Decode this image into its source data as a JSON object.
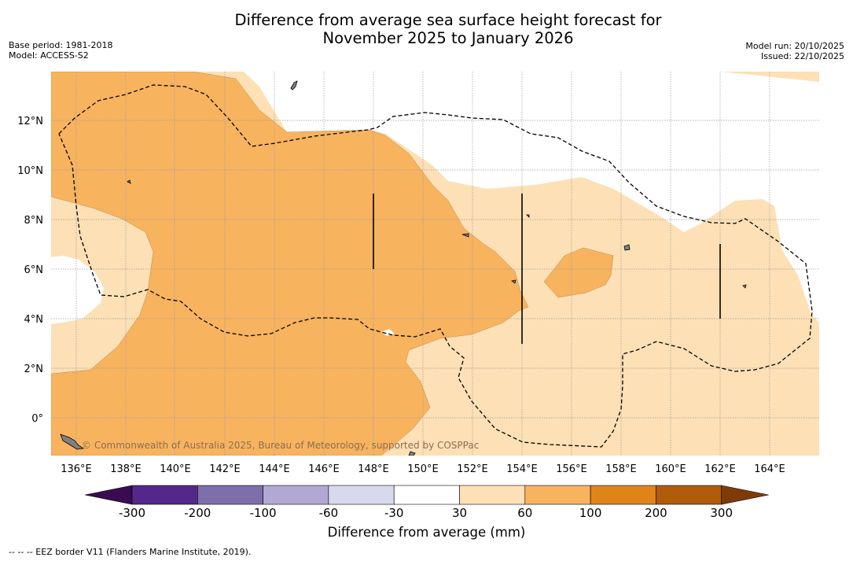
{
  "title": {
    "line1": "Difference from average sea surface height forecast for",
    "line2": "November 2025 to January 2026"
  },
  "meta_left": {
    "base_period": "Base period: 1981-2018",
    "model": "Model: ACCESS-S2"
  },
  "meta_right": {
    "model_run": "Model run: 20/10/2025",
    "issued": "Issued: 22/10/2025"
  },
  "map": {
    "lon_labels": [
      "136°E",
      "138°E",
      "140°E",
      "142°E",
      "144°E",
      "146°E",
      "148°E",
      "150°E",
      "152°E",
      "154°E",
      "156°E",
      "158°E",
      "160°E",
      "162°E",
      "164°E"
    ],
    "lat_labels": [
      "12°N",
      "10°N",
      "8°N",
      "6°N",
      "4°N",
      "2°N",
      "0°"
    ],
    "watermark": "© Commonwealth of Australia 2025, Bureau of Meteorology, supported by COSPPac",
    "colors": {
      "light_orange": "#fde0b5",
      "orange": "#f8b35f",
      "land": "#808080",
      "grid": "#9a9a9a"
    }
  },
  "colorbar": {
    "label": "Difference from average (mm)",
    "ticks": [
      "-300",
      "-200",
      "-100",
      "-60",
      "-30",
      "30",
      "60",
      "100",
      "200",
      "300"
    ],
    "colors": [
      "#3b0b52",
      "#54288a",
      "#7e6eac",
      "#b1a9d4",
      "#d8d9ec",
      "#ffffff",
      "#fde0b5",
      "#f8b35f",
      "#e0841a",
      "#b05c0b",
      "#7e3b08"
    ]
  },
  "footnote": "--  --  -- EEZ border V11 (Flanders Marine Institute, 2019)."
}
